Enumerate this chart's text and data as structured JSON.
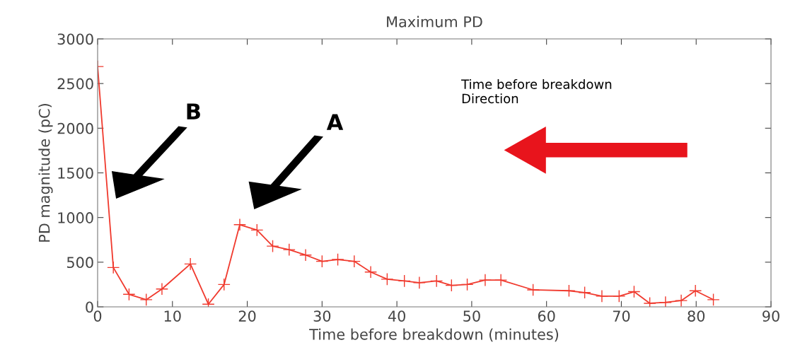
{
  "chart_data": {
    "type": "line",
    "title": "Maximum PD",
    "xlabel": "Time before breakdown (minutes)",
    "ylabel": "PD magnitude (pC)",
    "annotations": [
      "B",
      "A",
      "Time before breakdown\nDirection"
    ],
    "x": [
      0,
      2.1,
      4.2,
      6.5,
      8.6,
      12.4,
      14.8,
      16.9,
      19,
      21.3,
      23.4,
      25.6,
      27.8,
      30,
      32.1,
      34.3,
      36.5,
      38.7,
      41,
      43,
      45.3,
      47.3,
      49.4,
      51.8,
      53.9,
      58.2,
      63,
      65.1,
      67.4,
      69.7,
      71.7,
      73.8,
      75.9,
      78,
      79.9,
      82.3
    ],
    "series": [
      {
        "color": "#f03a2e",
        "values": [
          2690,
          440,
          140,
          80,
          200,
          480,
          30,
          250,
          920,
          860,
          680,
          640,
          580,
          510,
          530,
          510,
          390,
          310,
          290,
          270,
          290,
          240,
          250,
          300,
          300,
          190,
          180,
          160,
          120,
          120,
          170,
          40,
          50,
          70,
          180,
          80
        ]
      }
    ],
    "xlim": [
      0,
      90
    ],
    "ylim": [
      0,
      3000
    ],
    "xticks": [
      0,
      10,
      20,
      30,
      40,
      50,
      60,
      70,
      80,
      90
    ],
    "yticks": [
      0,
      500,
      1000,
      1500,
      2000,
      2500,
      3000
    ],
    "grid": false,
    "marker": "cross",
    "line_style": "solid"
  }
}
